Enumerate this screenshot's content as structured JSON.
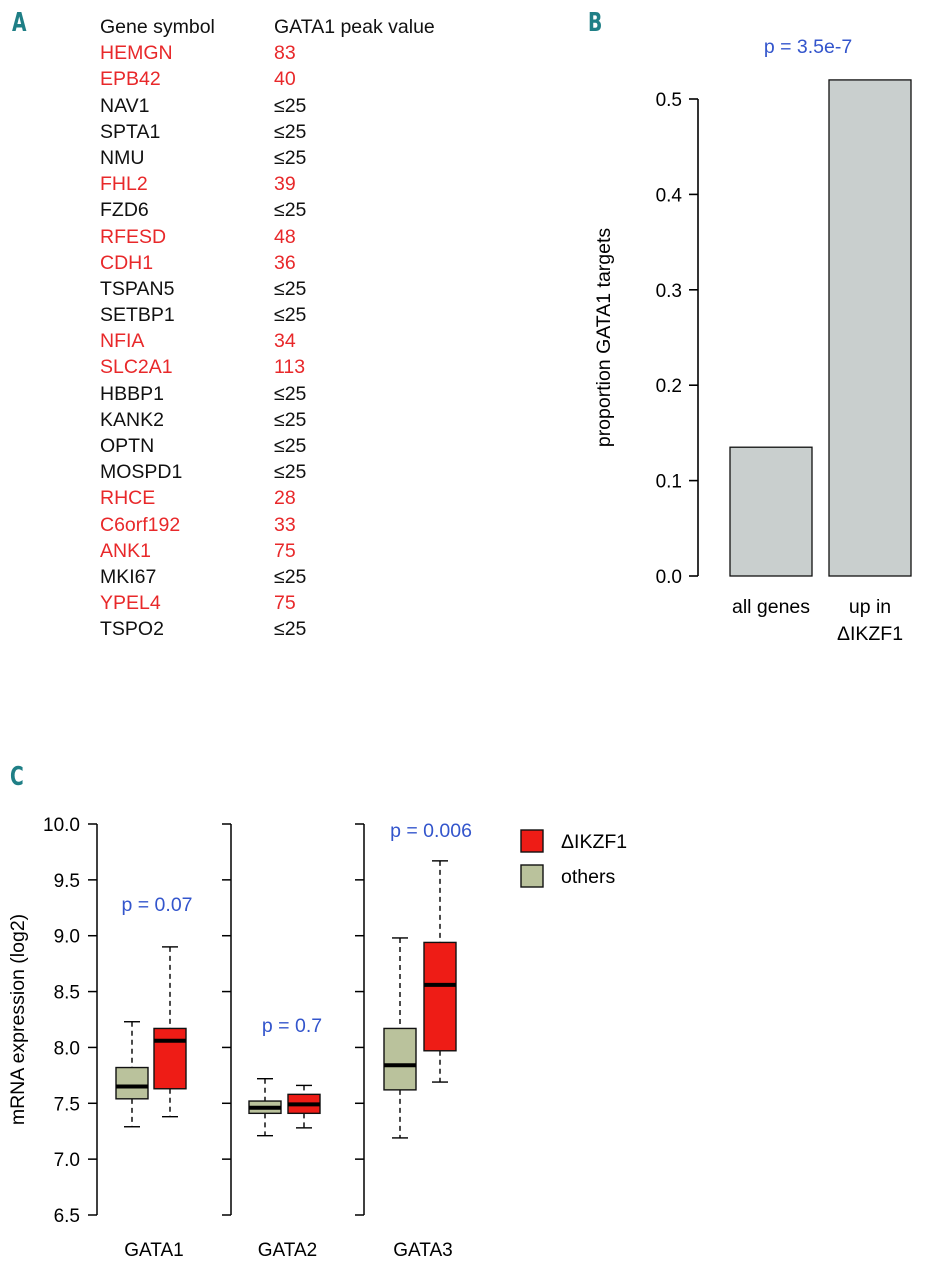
{
  "panel_labels": {
    "a": "A",
    "b": "B",
    "c": "C"
  },
  "colors": {
    "highlight": "#e8282a",
    "pvalue": "#3355cc",
    "bar": "#c9cfce",
    "delta_box": "#ee1c16",
    "others_box": "#bac29c",
    "panel_letter": "#1f7f86"
  },
  "table": {
    "headers": [
      "Gene symbol",
      "GATA1 peak value"
    ],
    "rows": [
      {
        "gene": "HEMGN",
        "value": "83",
        "highlight": true
      },
      {
        "gene": "EPB42",
        "value": "40",
        "highlight": true
      },
      {
        "gene": "NAV1",
        "value": "≤25",
        "highlight": false
      },
      {
        "gene": "SPTA1",
        "value": "≤25",
        "highlight": false
      },
      {
        "gene": "NMU",
        "value": "≤25",
        "highlight": false
      },
      {
        "gene": "FHL2",
        "value": "39",
        "highlight": true
      },
      {
        "gene": "FZD6",
        "value": "≤25",
        "highlight": false
      },
      {
        "gene": "RFESD",
        "value": "48",
        "highlight": true
      },
      {
        "gene": "CDH1",
        "value": "36",
        "highlight": true
      },
      {
        "gene": "TSPAN5",
        "value": "≤25",
        "highlight": false
      },
      {
        "gene": "SETBP1",
        "value": "≤25",
        "highlight": false
      },
      {
        "gene": "NFIA",
        "value": "34",
        "highlight": true
      },
      {
        "gene": "SLC2A1",
        "value": "113",
        "highlight": true
      },
      {
        "gene": "HBBP1",
        "value": "≤25",
        "highlight": false
      },
      {
        "gene": "KANK2",
        "value": "≤25",
        "highlight": false
      },
      {
        "gene": "OPTN",
        "value": "≤25",
        "highlight": false
      },
      {
        "gene": "MOSPD1",
        "value": "≤25",
        "highlight": false
      },
      {
        "gene": "RHCE",
        "value": "28",
        "highlight": true
      },
      {
        "gene": "C6orf192",
        "value": "33",
        "highlight": true
      },
      {
        "gene": "ANK1",
        "value": "75",
        "highlight": true
      },
      {
        "gene": "MKI67",
        "value": "≤25",
        "highlight": false
      },
      {
        "gene": "YPEL4",
        "value": "75",
        "highlight": true
      },
      {
        "gene": "TSPO2",
        "value": "≤25",
        "highlight": false
      }
    ]
  },
  "chart_data": [
    {
      "type": "bar",
      "panel": "B",
      "categories": [
        "all genes",
        "up in\nΔIKZF1"
      ],
      "values": [
        0.135,
        0.52
      ],
      "ylabel": "proportion GATA1 targets",
      "ylim": [
        0,
        0.52
      ],
      "yticks": [
        "0.0",
        "0.1",
        "0.2",
        "0.3",
        "0.4",
        "0.5"
      ],
      "ytick_values": [
        0,
        0.1,
        0.2,
        0.3,
        0.4,
        0.5
      ],
      "annotation": "p = 3.5e-7"
    },
    {
      "type": "box",
      "panel": "C",
      "ylabel": "mRNA expression (log2)",
      "ylim": [
        6.5,
        10.0
      ],
      "yticks": [
        "6.5",
        "7.0",
        "7.5",
        "8.0",
        "8.5",
        "9.0",
        "9.5",
        "10.0"
      ],
      "ytick_values": [
        6.5,
        7.0,
        7.5,
        8.0,
        8.5,
        9.0,
        9.5,
        10.0
      ],
      "legend": [
        {
          "label": "ΔIKZF1",
          "color": "#ee1c16"
        },
        {
          "label": "others",
          "color": "#bac29c"
        }
      ],
      "groups": [
        {
          "name": "GATA1",
          "pvalue": "p = 0.07",
          "others": {
            "whisker_low": 7.29,
            "q1": 7.54,
            "median": 7.65,
            "q3": 7.82,
            "whisker_high": 8.23
          },
          "delta": {
            "whisker_low": 7.38,
            "q1": 7.63,
            "median": 8.06,
            "q3": 8.17,
            "whisker_high": 8.9
          }
        },
        {
          "name": "GATA2",
          "pvalue": "p = 0.7",
          "others": {
            "whisker_low": 7.21,
            "q1": 7.41,
            "median": 7.46,
            "q3": 7.52,
            "whisker_high": 7.72
          },
          "delta": {
            "whisker_low": 7.28,
            "q1": 7.41,
            "median": 7.49,
            "q3": 7.58,
            "whisker_high": 7.66
          }
        },
        {
          "name": "GATA3",
          "pvalue": "p = 0.006",
          "others": {
            "whisker_low": 7.19,
            "q1": 7.62,
            "median": 7.84,
            "q3": 8.17,
            "whisker_high": 8.98
          },
          "delta": {
            "whisker_low": 7.69,
            "q1": 7.97,
            "median": 8.56,
            "q3": 8.94,
            "whisker_high": 9.67
          }
        }
      ]
    }
  ]
}
